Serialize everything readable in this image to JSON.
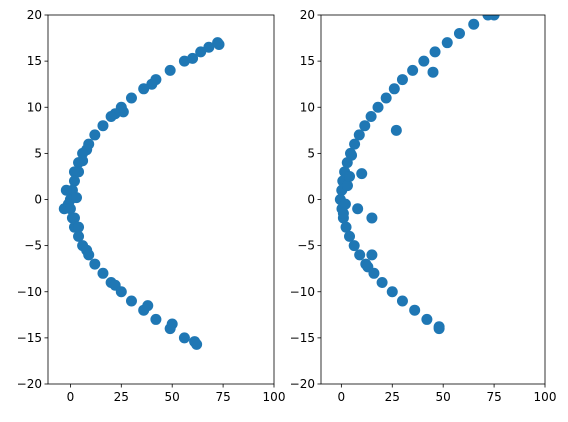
{
  "chart_data": [
    {
      "type": "scatter",
      "color": "#1f77b4",
      "x": [
        72.3,
        73,
        68,
        64,
        56,
        60,
        49,
        42,
        40,
        36,
        30,
        26,
        25,
        22,
        20,
        16,
        12,
        9,
        8,
        6,
        6,
        4,
        4,
        2,
        2,
        1,
        0,
        -1,
        3,
        -2,
        -3,
        0,
        1,
        2,
        2,
        4,
        4,
        6,
        8,
        9,
        12,
        16,
        20,
        22,
        25,
        30,
        36,
        38,
        42,
        49,
        50,
        56,
        62,
        61
      ],
      "y": [
        17,
        16.8,
        16.5,
        16,
        15,
        15.3,
        14,
        13,
        12.5,
        12,
        11,
        9.5,
        10,
        9.3,
        9,
        8,
        7,
        6,
        5.4,
        5,
        4.2,
        4,
        3,
        3,
        2,
        1,
        0,
        -0.5,
        0.2,
        1,
        -1,
        -1,
        -2,
        -2,
        -3,
        -3,
        -4,
        -5,
        -5.5,
        -6,
        -7,
        -8,
        -9,
        -9.3,
        -10,
        -11,
        -12,
        -11.5,
        -13,
        -14,
        -13.5,
        -15,
        -15.7,
        -15.4
      ]
    },
    {
      "type": "scatter",
      "color": "#1f77b4",
      "x": [
        72,
        75,
        65,
        58,
        52,
        46,
        45,
        40.5,
        35,
        30,
        26,
        22,
        18,
        14.6,
        11.5,
        8.8,
        10,
        6.5,
        4.5,
        5,
        2.9,
        1.6,
        0.7,
        0.2,
        -0.5,
        27,
        0.3,
        1,
        8,
        15,
        2.3,
        4,
        6.3,
        9,
        15,
        12,
        13,
        16,
        20,
        25,
        30,
        36,
        42,
        48,
        48,
        3,
        2,
        1,
        4
      ],
      "y": [
        20,
        20,
        19,
        18,
        17,
        16,
        13.8,
        15,
        14,
        13,
        12,
        11,
        10,
        9,
        8,
        7,
        2.8,
        6,
        5,
        4.8,
        4,
        3,
        2,
        1,
        0,
        7.5,
        -1,
        -2,
        -1,
        -2,
        -3,
        -4,
        -5,
        -6,
        -6,
        -7,
        -7.3,
        -8,
        -9,
        -10,
        -11,
        -12,
        -13,
        -13.8,
        -14,
        1.5,
        -0.5,
        -1.5,
        2.5
      ]
    }
  ],
  "axes": [
    {
      "xlim": [
        -11,
        100
      ],
      "ylim": [
        -20,
        20
      ],
      "xticks": [
        0,
        25,
        50,
        75,
        100
      ],
      "yticks": [
        {
          "value": -20,
          "label": "−20"
        },
        {
          "value": -15,
          "label": "−15"
        },
        {
          "value": -10,
          "label": "−10"
        },
        {
          "value": -5,
          "label": "−5"
        },
        0,
        5,
        10,
        15,
        20
      ]
    },
    {
      "xlim": [
        -10,
        100
      ],
      "ylim": [
        -20,
        20
      ],
      "xticks": [
        0,
        25,
        50,
        75,
        100
      ],
      "yticks": [
        {
          "value": -20,
          "label": "−20"
        },
        {
          "value": -15,
          "label": "−15"
        },
        {
          "value": -10,
          "label": "−10"
        },
        {
          "value": -5,
          "label": "−5"
        },
        0,
        5,
        10,
        15,
        20
      ]
    }
  ]
}
